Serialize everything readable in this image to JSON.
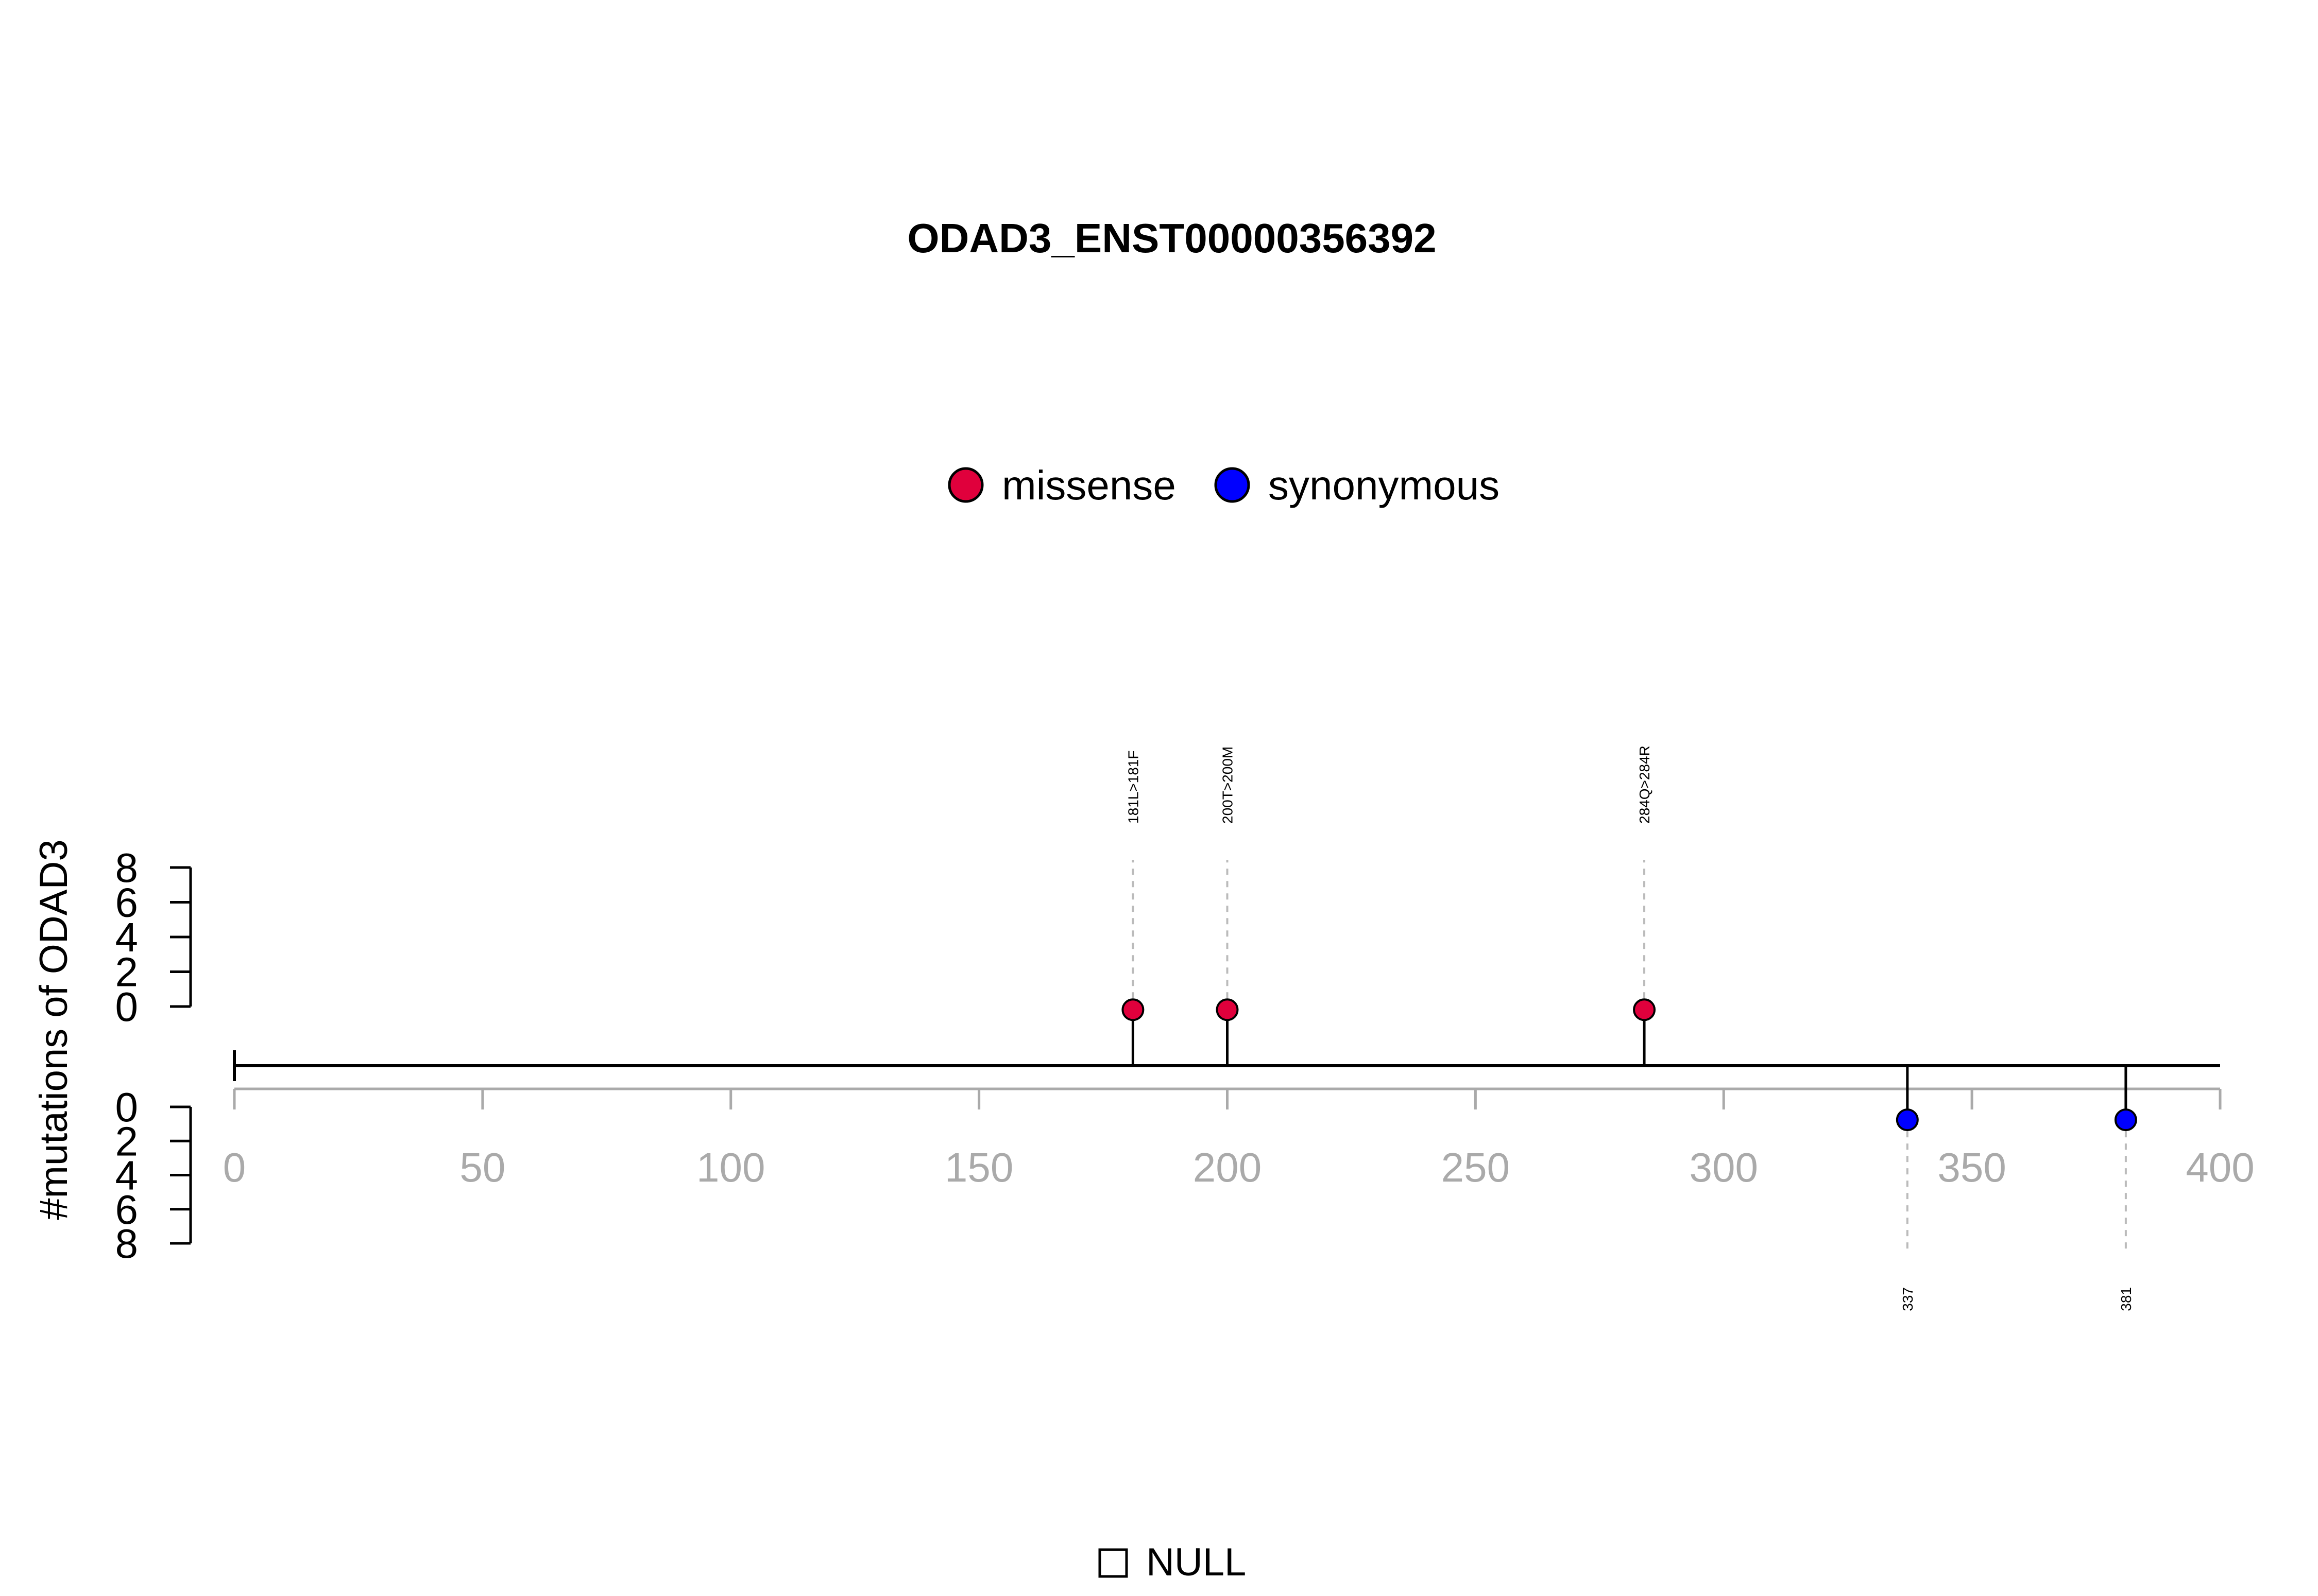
{
  "chart_data": {
    "type": "lollipop",
    "title": "ODAD3_ENST00000356392",
    "ylabel": "#mutations of ODAD3",
    "xlim": [
      0,
      400
    ],
    "x_ticks": [
      "0",
      "50",
      "100",
      "150",
      "200",
      "250",
      "300",
      "350",
      "400"
    ],
    "upper_y_ticks": [
      "8",
      "6",
      "4",
      "2",
      "0"
    ],
    "lower_y_ticks": [
      "0",
      "2",
      "4",
      "6",
      "8"
    ],
    "ylim": [
      0,
      8
    ],
    "legend": [
      {
        "name": "missense",
        "color": "#E0003C"
      },
      {
        "name": "synonymous",
        "color": "#0000FF"
      }
    ],
    "domain_legend": {
      "label": "NULL"
    },
    "mutations": [
      {
        "position": 181,
        "count": 1,
        "type": "missense",
        "label": "181L>181F",
        "side": "top"
      },
      {
        "position": 200,
        "count": 1,
        "type": "missense",
        "label": "200T>200M",
        "side": "top"
      },
      {
        "position": 284,
        "count": 1,
        "type": "missense",
        "label": "284Q>284R",
        "side": "top"
      },
      {
        "position": 337,
        "count": 1,
        "type": "synonymous",
        "label": "337",
        "side": "bottom"
      },
      {
        "position": 381,
        "count": 1,
        "type": "synonymous",
        "label": "381",
        "side": "bottom"
      }
    ],
    "colors": {
      "axis_gray": "#AAAAAA",
      "dash_gray": "#BBBBBB",
      "black": "#000000"
    }
  }
}
